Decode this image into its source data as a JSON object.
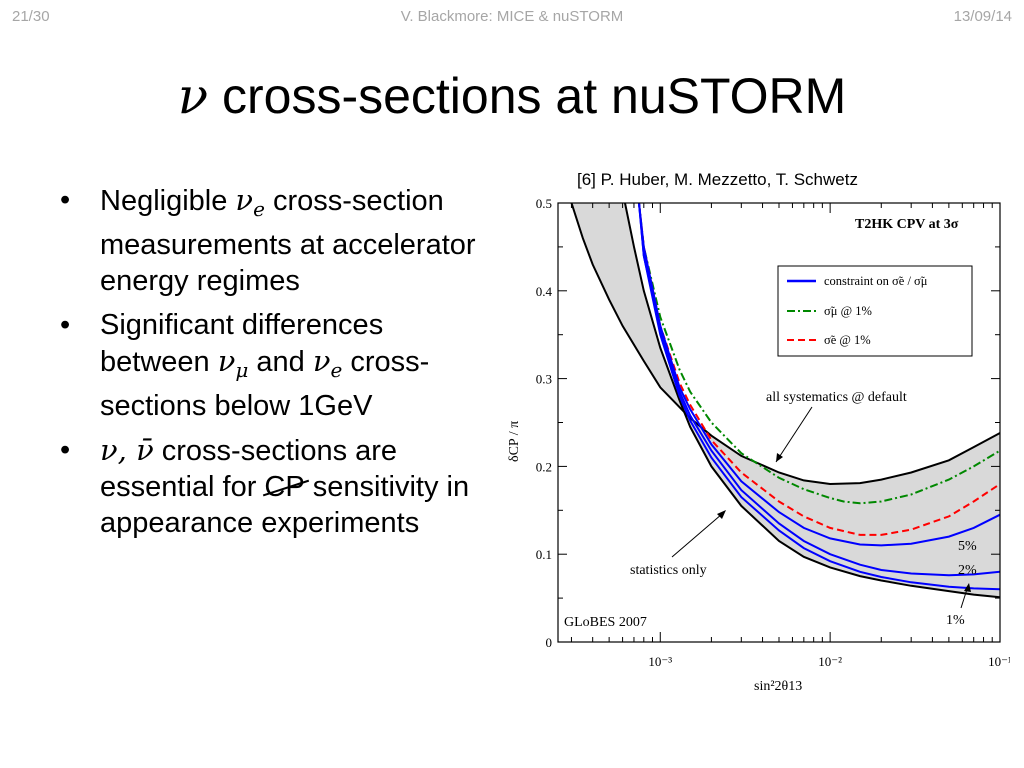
{
  "header": {
    "slide_number": "21/30",
    "author": "V. Blackmore: MICE & nuSTORM",
    "date": "13/09/14"
  },
  "title": {
    "symbol": "ν",
    "text": " cross-sections at nuSTORM"
  },
  "bullets": [
    {
      "parts": [
        "Negligible ",
        "ν",
        "e",
        " cross-section measurements at accelerator energy regimes"
      ]
    },
    {
      "parts": [
        "Significant differences between ",
        "ν",
        "μ",
        " and ",
        "ν",
        "e",
        " cross-sections below 1GeV"
      ]
    },
    {
      "parts": [
        "ν, ν̄",
        " cross-sections are essential for ",
        "CP",
        " sensitivity in appearance experiments"
      ]
    }
  ],
  "reference": "[6] P. Huber, M. Mezzetto, T. Schwetz",
  "colors": {
    "blue": "#0000ff",
    "green": "#008800",
    "red": "#ff0000",
    "band": "#d9d9d9",
    "header_gray": "#a6a6a6"
  },
  "chart_data": {
    "type": "line",
    "title": "T2HK  CPV at 3σ",
    "xlabel": "sin²2θ13",
    "ylabel": "δCP / π",
    "xscale": "log",
    "xlim": [
      0.00025,
      0.1
    ],
    "ylim": [
      0,
      0.5
    ],
    "x_ticks": [
      0.001,
      0.01,
      0.1
    ],
    "x_tick_labels": [
      "10⁻³",
      "10⁻²",
      "10⁻¹"
    ],
    "y_ticks": [
      0,
      0.1,
      0.2,
      0.3,
      0.4,
      0.5
    ],
    "y_tick_labels": [
      "0",
      "0.1",
      "0.2",
      "0.3",
      "0.4",
      "0.5"
    ],
    "legend": {
      "position": "top-right",
      "entries": [
        {
          "label": "constraint on σ̃e / σ̃μ",
          "color": "#0000ff",
          "style": "solid"
        },
        {
          "label": "σ̃μ @ 1%",
          "color": "#008800",
          "style": "dashdot"
        },
        {
          "label": "σ̃e @ 1%",
          "color": "#ff0000",
          "style": "dashed"
        }
      ]
    },
    "band": {
      "label_upper": "all systematics @ default",
      "label_lower": "statistics only",
      "upper": {
        "x": [
          0.0003,
          0.00035,
          0.0004,
          0.0005,
          0.0006,
          0.0008,
          0.001,
          0.0015,
          0.002,
          0.003,
          0.005,
          0.007,
          0.01,
          0.015,
          0.02,
          0.03,
          0.05,
          0.07,
          0.1
        ],
        "y": [
          0.5,
          0.46,
          0.43,
          0.39,
          0.36,
          0.32,
          0.29,
          0.255,
          0.235,
          0.212,
          0.193,
          0.184,
          0.18,
          0.181,
          0.185,
          0.193,
          0.207,
          0.222,
          0.238
        ]
      },
      "lower": {
        "x": [
          0.00062,
          0.0007,
          0.0008,
          0.001,
          0.0013,
          0.0015,
          0.002,
          0.003,
          0.005,
          0.007,
          0.01,
          0.015,
          0.02,
          0.03,
          0.05,
          0.07,
          0.1
        ],
        "y": [
          0.5,
          0.45,
          0.4,
          0.335,
          0.275,
          0.245,
          0.2,
          0.155,
          0.115,
          0.097,
          0.085,
          0.075,
          0.07,
          0.064,
          0.058,
          0.054,
          0.051
        ]
      }
    },
    "series": [
      {
        "name": "σ̃μ @ 1%",
        "color": "#008800",
        "style": "dashdot",
        "x": [
          0.00075,
          0.0008,
          0.001,
          0.0013,
          0.0015,
          0.002,
          0.003,
          0.005,
          0.007,
          0.01,
          0.012,
          0.015,
          0.02,
          0.03,
          0.05,
          0.07,
          0.1
        ],
        "y": [
          0.5,
          0.45,
          0.37,
          0.31,
          0.285,
          0.25,
          0.215,
          0.187,
          0.174,
          0.164,
          0.16,
          0.158,
          0.16,
          0.168,
          0.185,
          0.2,
          0.218
        ]
      },
      {
        "name": "σ̃e @ 1%",
        "color": "#ff0000",
        "style": "dashed",
        "x": [
          0.00075,
          0.0008,
          0.001,
          0.0013,
          0.0015,
          0.002,
          0.003,
          0.005,
          0.007,
          0.01,
          0.015,
          0.02,
          0.03,
          0.05,
          0.07,
          0.1
        ],
        "y": [
          0.5,
          0.45,
          0.36,
          0.295,
          0.27,
          0.23,
          0.193,
          0.16,
          0.143,
          0.13,
          0.122,
          0.122,
          0.128,
          0.143,
          0.16,
          0.18
        ]
      },
      {
        "name": "constraint on σ̃e / σ̃μ",
        "label": "5%",
        "color": "#0000ff",
        "style": "solid",
        "x": [
          0.00075,
          0.0008,
          0.001,
          0.0013,
          0.0015,
          0.002,
          0.003,
          0.005,
          0.007,
          0.01,
          0.015,
          0.02,
          0.03,
          0.05,
          0.07,
          0.1
        ],
        "y": [
          0.5,
          0.45,
          0.36,
          0.29,
          0.265,
          0.225,
          0.183,
          0.148,
          0.13,
          0.118,
          0.111,
          0.11,
          0.112,
          0.12,
          0.13,
          0.145
        ]
      },
      {
        "name": "constraint on σ̃e / σ̃μ",
        "label": "2%",
        "color": "#0000ff",
        "style": "solid",
        "x": [
          0.00075,
          0.0008,
          0.001,
          0.0013,
          0.0015,
          0.002,
          0.003,
          0.005,
          0.007,
          0.01,
          0.015,
          0.02,
          0.03,
          0.05,
          0.07,
          0.1
        ],
        "y": [
          0.5,
          0.44,
          0.355,
          0.285,
          0.258,
          0.218,
          0.173,
          0.135,
          0.115,
          0.1,
          0.088,
          0.082,
          0.078,
          0.076,
          0.077,
          0.08
        ]
      },
      {
        "name": "constraint on σ̃e / σ̃μ",
        "label": "1%",
        "color": "#0000ff",
        "style": "solid",
        "x": [
          0.00075,
          0.0008,
          0.001,
          0.0013,
          0.0015,
          0.002,
          0.003,
          0.005,
          0.007,
          0.01,
          0.015,
          0.02,
          0.03,
          0.05,
          0.07,
          0.1
        ],
        "y": [
          0.5,
          0.44,
          0.35,
          0.28,
          0.252,
          0.21,
          0.165,
          0.127,
          0.107,
          0.092,
          0.08,
          0.074,
          0.068,
          0.063,
          0.061,
          0.06
        ]
      }
    ],
    "annotations": [
      "all systematics @ default",
      "statistics only",
      "5%",
      "2%",
      "1%",
      "GLoBES 2007"
    ]
  }
}
